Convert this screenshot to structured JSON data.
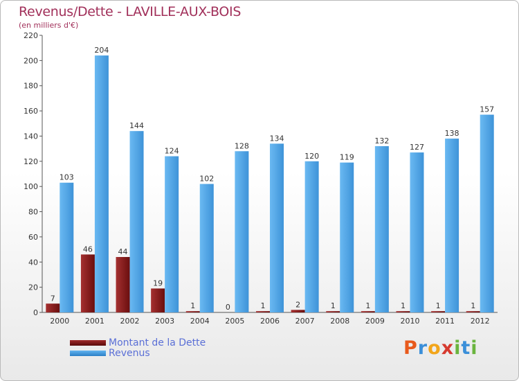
{
  "chart_data": {
    "type": "bar",
    "title": "Revenus/Dette - LAVILLE-AUX-BOIS",
    "subtitle": "(en milliers d'€)",
    "categories": [
      "2000",
      "2001",
      "2002",
      "2003",
      "2004",
      "2005",
      "2006",
      "2007",
      "2008",
      "2009",
      "2010",
      "2011",
      "2012"
    ],
    "series": [
      {
        "name": "Montant de la Dette",
        "color": "#7a1414",
        "values": [
          7,
          46,
          44,
          19,
          1,
          0,
          1,
          2,
          1,
          1,
          1,
          1,
          1
        ]
      },
      {
        "name": "Revenus",
        "color": "#4a9fe0",
        "values": [
          103,
          204,
          144,
          124,
          102,
          128,
          134,
          120,
          119,
          132,
          127,
          138,
          157
        ]
      }
    ],
    "ylim": [
      0,
      220
    ],
    "yticks": [
      0,
      20,
      40,
      60,
      80,
      100,
      120,
      140,
      160,
      180,
      200,
      220
    ],
    "xlabel": "",
    "ylabel": "",
    "grid": false,
    "legend": "bottom-left"
  },
  "logo": {
    "letters": [
      "P",
      "r",
      "o",
      "x",
      "i",
      "t",
      "i"
    ],
    "colors": [
      "#e85a1c",
      "#3b8fd9",
      "#f2a51a",
      "#d63a2f",
      "#6ab43e",
      "#3b8fd9",
      "#6ab43e"
    ]
  }
}
